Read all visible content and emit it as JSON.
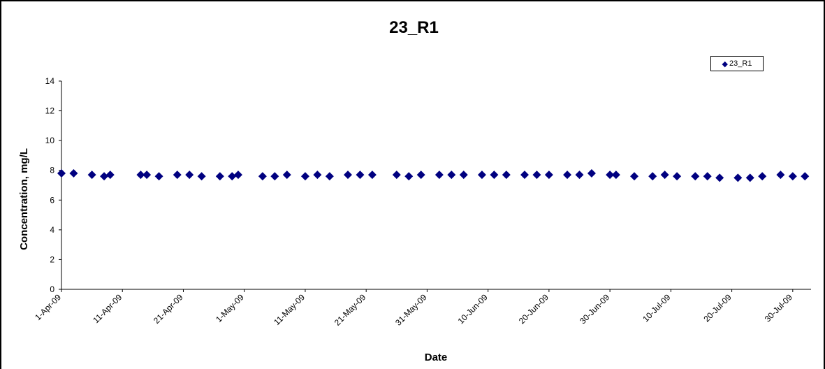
{
  "chart_data": {
    "type": "scatter",
    "title": "23_R1",
    "xlabel": "Date",
    "ylabel": "Concentration, mg/L",
    "x_tick_labels": [
      "1-Apr-09",
      "11-Apr-09",
      "21-Apr-09",
      "1-May-09",
      "11-May-09",
      "21-May-09",
      "31-May-09",
      "10-Jun-09",
      "20-Jun-09",
      "30-Jun-09",
      "10-Jul-09",
      "20-Jul-09",
      "30-Jul-09"
    ],
    "y_tick_labels": [
      "0",
      "2",
      "4",
      "6",
      "8",
      "10",
      "12",
      "14"
    ],
    "ylim": [
      0,
      14
    ],
    "xlim": [
      "2009-04-01",
      "2009-08-02"
    ],
    "grid": false,
    "legend_position": "top-right",
    "marker_color": "#000080",
    "series": [
      {
        "name": "23_R1",
        "points": [
          {
            "x": "2009-04-01",
            "y": 7.8
          },
          {
            "x": "2009-04-03",
            "y": 7.8
          },
          {
            "x": "2009-04-06",
            "y": 7.7
          },
          {
            "x": "2009-04-08",
            "y": 7.6
          },
          {
            "x": "2009-04-09",
            "y": 7.7
          },
          {
            "x": "2009-04-14",
            "y": 7.7
          },
          {
            "x": "2009-04-15",
            "y": 7.7
          },
          {
            "x": "2009-04-17",
            "y": 7.6
          },
          {
            "x": "2009-04-20",
            "y": 7.7
          },
          {
            "x": "2009-04-22",
            "y": 7.7
          },
          {
            "x": "2009-04-24",
            "y": 7.6
          },
          {
            "x": "2009-04-27",
            "y": 7.6
          },
          {
            "x": "2009-04-29",
            "y": 7.6
          },
          {
            "x": "2009-04-30",
            "y": 7.7
          },
          {
            "x": "2009-05-04",
            "y": 7.6
          },
          {
            "x": "2009-05-06",
            "y": 7.6
          },
          {
            "x": "2009-05-08",
            "y": 7.7
          },
          {
            "x": "2009-05-11",
            "y": 7.6
          },
          {
            "x": "2009-05-13",
            "y": 7.7
          },
          {
            "x": "2009-05-15",
            "y": 7.6
          },
          {
            "x": "2009-05-18",
            "y": 7.7
          },
          {
            "x": "2009-05-20",
            "y": 7.7
          },
          {
            "x": "2009-05-22",
            "y": 7.7
          },
          {
            "x": "2009-05-26",
            "y": 7.7
          },
          {
            "x": "2009-05-28",
            "y": 7.6
          },
          {
            "x": "2009-05-30",
            "y": 7.7
          },
          {
            "x": "2009-06-02",
            "y": 7.7
          },
          {
            "x": "2009-06-04",
            "y": 7.7
          },
          {
            "x": "2009-06-06",
            "y": 7.7
          },
          {
            "x": "2009-06-09",
            "y": 7.7
          },
          {
            "x": "2009-06-11",
            "y": 7.7
          },
          {
            "x": "2009-06-13",
            "y": 7.7
          },
          {
            "x": "2009-06-16",
            "y": 7.7
          },
          {
            "x": "2009-06-18",
            "y": 7.7
          },
          {
            "x": "2009-06-20",
            "y": 7.7
          },
          {
            "x": "2009-06-23",
            "y": 7.7
          },
          {
            "x": "2009-06-25",
            "y": 7.7
          },
          {
            "x": "2009-06-27",
            "y": 7.8
          },
          {
            "x": "2009-06-30",
            "y": 7.7
          },
          {
            "x": "2009-07-01",
            "y": 7.7
          },
          {
            "x": "2009-07-04",
            "y": 7.6
          },
          {
            "x": "2009-07-07",
            "y": 7.6
          },
          {
            "x": "2009-07-09",
            "y": 7.7
          },
          {
            "x": "2009-07-11",
            "y": 7.6
          },
          {
            "x": "2009-07-14",
            "y": 7.6
          },
          {
            "x": "2009-07-16",
            "y": 7.6
          },
          {
            "x": "2009-07-18",
            "y": 7.5
          },
          {
            "x": "2009-07-21",
            "y": 7.5
          },
          {
            "x": "2009-07-23",
            "y": 7.5
          },
          {
            "x": "2009-07-25",
            "y": 7.6
          },
          {
            "x": "2009-07-28",
            "y": 7.7
          },
          {
            "x": "2009-07-30",
            "y": 7.6
          },
          {
            "x": "2009-08-01",
            "y": 7.6
          }
        ]
      }
    ]
  }
}
